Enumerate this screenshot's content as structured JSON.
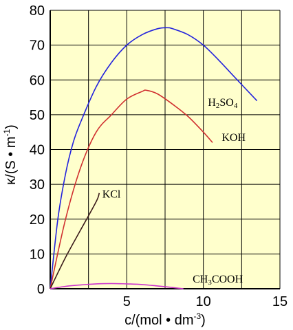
{
  "chart_data": {
    "type": "line",
    "xlabel": "c/(mol • dm",
    "xlabel_sup": "-3",
    "xlabel_end": ")",
    "ylabel": "κ/(S • m",
    "ylabel_sup": "-1",
    "ylabel_end": ")",
    "xlim": [
      0,
      15
    ],
    "ylim": [
      0,
      80
    ],
    "x_ticks": [
      "5",
      "10",
      "15"
    ],
    "y_ticks": [
      "0",
      "10",
      "20",
      "30",
      "40",
      "50",
      "60",
      "70",
      "80"
    ],
    "x_tick_values": [
      5,
      10,
      15
    ],
    "y_tick_values": [
      0,
      10,
      20,
      30,
      40,
      50,
      60,
      70,
      80
    ],
    "x_grid": [
      0,
      2.5,
      5,
      7.5,
      10,
      12.5,
      15
    ],
    "y_grid": [
      0,
      10,
      20,
      30,
      40,
      50,
      60,
      70,
      80
    ],
    "grid": true,
    "background_color": "#ffffcc",
    "series": [
      {
        "name": "H2SO4",
        "label_parts": [
          "H",
          "2",
          "SO",
          "4"
        ],
        "color": "#2222dd",
        "label_at": [
          10.3,
          52.5
        ],
        "x": [
          0,
          0.5,
          1,
          1.5,
          2,
          3,
          4,
          5,
          6,
          7,
          7.6,
          8,
          9,
          10,
          11,
          12,
          13.5
        ],
        "y": [
          0,
          20,
          33,
          42,
          48,
          58,
          65,
          70,
          73,
          74.7,
          75,
          74.7,
          73,
          70,
          65.7,
          61,
          54
        ]
      },
      {
        "name": "KOH",
        "label_parts": [
          "KOH"
        ],
        "color": "#d03030",
        "label_at": [
          11.2,
          42.5
        ],
        "x": [
          0,
          1,
          2,
          3,
          4,
          5,
          6,
          6.3,
          7,
          8,
          9,
          10,
          10.6
        ],
        "y": [
          0,
          20,
          35,
          45,
          50,
          54.5,
          56.7,
          57,
          56,
          53,
          49.5,
          45,
          42
        ]
      },
      {
        "name": "KCl",
        "label_parts": [
          "KCl"
        ],
        "color": "#3a1a1a",
        "label_at": [
          3.4,
          26.2
        ],
        "x": [
          0,
          1,
          2,
          3,
          3.2
        ],
        "y": [
          0,
          9,
          17,
          25,
          27.5
        ]
      },
      {
        "name": "CH3COOH",
        "label_parts": [
          "CH",
          "3",
          "COOH"
        ],
        "color": "#cc33cc",
        "label_at": [
          9.3,
          1.8
        ],
        "x": [
          0,
          1,
          2,
          3,
          4,
          5,
          6,
          7,
          8,
          8.7
        ],
        "y": [
          0,
          0.7,
          1.1,
          1.4,
          1.5,
          1.4,
          1.2,
          0.8,
          0.35,
          0
        ]
      }
    ]
  }
}
